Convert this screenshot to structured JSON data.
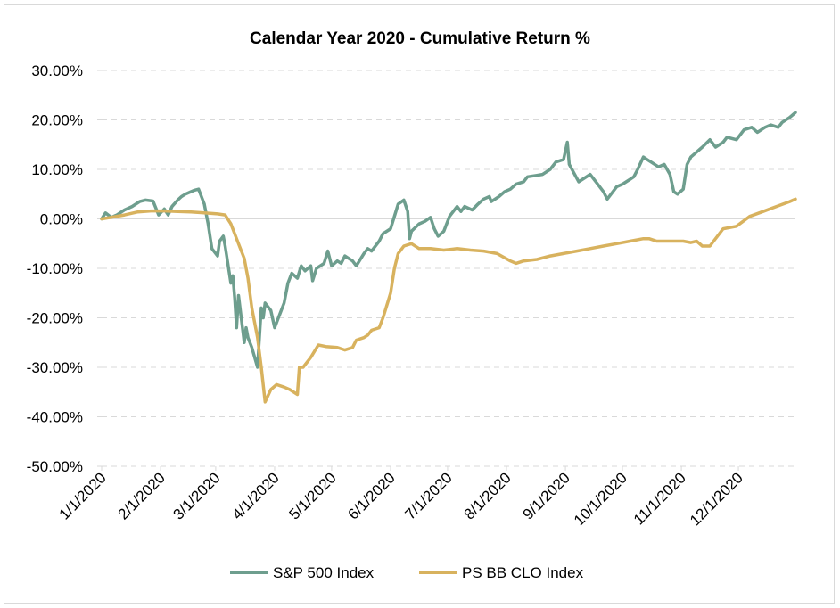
{
  "chart_data": {
    "type": "line",
    "title": "Calendar Year 2020 - Cumulative Return %",
    "xlabel": "",
    "ylabel": "",
    "ylim": [
      -50,
      30
    ],
    "y_ticks": [
      30,
      20,
      10,
      0,
      -10,
      -20,
      -30,
      -40,
      -50
    ],
    "y_tick_labels": [
      "30.00%",
      "20.00%",
      "10.00%",
      "0.00%",
      "-10.00%",
      "-20.00%",
      "-30.00%",
      "-40.00%",
      "-50.00%"
    ],
    "x_tick_labels": [
      "1/1/2020",
      "2/1/2020",
      "3/1/2020",
      "4/1/2020",
      "5/1/2020",
      "6/1/2020",
      "7/1/2020",
      "8/1/2020",
      "9/1/2020",
      "10/1/2020",
      "11/1/2020",
      "12/1/2020"
    ],
    "grid": true,
    "legend_position": "bottom",
    "series": [
      {
        "name": "S&P 500 Index",
        "color": "#6e9e8e",
        "points": [
          [
            "2020-01-01",
            0
          ],
          [
            "2020-01-03",
            1.2
          ],
          [
            "2020-01-06",
            0.3
          ],
          [
            "2020-01-09",
            0.8
          ],
          [
            "2020-01-13",
            1.8
          ],
          [
            "2020-01-17",
            2.5
          ],
          [
            "2020-01-21",
            3.5
          ],
          [
            "2020-01-24",
            3.8
          ],
          [
            "2020-01-28",
            3.6
          ],
          [
            "2020-01-31",
            0.8
          ],
          [
            "2020-02-03",
            2.0
          ],
          [
            "2020-02-05",
            0.8
          ],
          [
            "2020-02-07",
            2.5
          ],
          [
            "2020-02-10",
            3.8
          ],
          [
            "2020-02-12",
            4.5
          ],
          [
            "2020-02-14",
            5.0
          ],
          [
            "2020-02-17",
            5.5
          ],
          [
            "2020-02-19",
            5.8
          ],
          [
            "2020-02-21",
            6.0
          ],
          [
            "2020-02-24",
            3.0
          ],
          [
            "2020-02-26",
            -1.0
          ],
          [
            "2020-02-28",
            -6.0
          ],
          [
            "2020-03-02",
            -7.5
          ],
          [
            "2020-03-03",
            -4.5
          ],
          [
            "2020-03-05",
            -3.5
          ],
          [
            "2020-03-06",
            -5.5
          ],
          [
            "2020-03-09",
            -13.0
          ],
          [
            "2020-03-10",
            -11.5
          ],
          [
            "2020-03-11",
            -16.0
          ],
          [
            "2020-03-12",
            -22.0
          ],
          [
            "2020-03-13",
            -15.5
          ],
          [
            "2020-03-16",
            -25.0
          ],
          [
            "2020-03-17",
            -22.0
          ],
          [
            "2020-03-18",
            -24.0
          ],
          [
            "2020-03-20",
            -26.0
          ],
          [
            "2020-03-23",
            -30.0
          ],
          [
            "2020-03-24",
            -24.0
          ],
          [
            "2020-03-25",
            -18.0
          ],
          [
            "2020-03-26",
            -20.0
          ],
          [
            "2020-03-27",
            -17.0
          ],
          [
            "2020-03-30",
            -18.5
          ],
          [
            "2020-04-01",
            -22.0
          ],
          [
            "2020-04-03",
            -20.0
          ],
          [
            "2020-04-06",
            -17.0
          ],
          [
            "2020-04-08",
            -13.0
          ],
          [
            "2020-04-10",
            -11.0
          ],
          [
            "2020-04-13",
            -12.0
          ],
          [
            "2020-04-15",
            -9.5
          ],
          [
            "2020-04-17",
            -10.5
          ],
          [
            "2020-04-20",
            -9.5
          ],
          [
            "2020-04-21",
            -12.5
          ],
          [
            "2020-04-23",
            -10.0
          ],
          [
            "2020-04-27",
            -9.0
          ],
          [
            "2020-04-29",
            -6.5
          ],
          [
            "2020-05-01",
            -9.5
          ],
          [
            "2020-05-04",
            -8.5
          ],
          [
            "2020-05-06",
            -9.0
          ],
          [
            "2020-05-08",
            -7.5
          ],
          [
            "2020-05-12",
            -8.5
          ],
          [
            "2020-05-14",
            -9.5
          ],
          [
            "2020-05-18",
            -7.0
          ],
          [
            "2020-05-20",
            -6.0
          ],
          [
            "2020-05-22",
            -6.5
          ],
          [
            "2020-05-26",
            -4.5
          ],
          [
            "2020-05-28",
            -3.0
          ],
          [
            "2020-06-01",
            -2.0
          ],
          [
            "2020-06-03",
            0.5
          ],
          [
            "2020-06-05",
            3.0
          ],
          [
            "2020-06-08",
            3.8
          ],
          [
            "2020-06-10",
            1.5
          ],
          [
            "2020-06-11",
            -4.0
          ],
          [
            "2020-06-12",
            -2.5
          ],
          [
            "2020-06-16",
            -1.0
          ],
          [
            "2020-06-19",
            -0.5
          ],
          [
            "2020-06-22",
            0.3
          ],
          [
            "2020-06-24",
            -2.0
          ],
          [
            "2020-06-26",
            -3.5
          ],
          [
            "2020-06-29",
            -2.5
          ],
          [
            "2020-07-02",
            0.5
          ],
          [
            "2020-07-06",
            2.5
          ],
          [
            "2020-07-08",
            1.5
          ],
          [
            "2020-07-10",
            2.5
          ],
          [
            "2020-07-14",
            1.8
          ],
          [
            "2020-07-17",
            3.0
          ],
          [
            "2020-07-20",
            4.0
          ],
          [
            "2020-07-23",
            4.5
          ],
          [
            "2020-07-24",
            3.5
          ],
          [
            "2020-07-28",
            4.5
          ],
          [
            "2020-07-31",
            5.5
          ],
          [
            "2020-08-03",
            6.0
          ],
          [
            "2020-08-06",
            7.0
          ],
          [
            "2020-08-10",
            7.5
          ],
          [
            "2020-08-12",
            8.5
          ],
          [
            "2020-08-17",
            8.8
          ],
          [
            "2020-08-20",
            9.0
          ],
          [
            "2020-08-24",
            10.0
          ],
          [
            "2020-08-27",
            11.5
          ],
          [
            "2020-08-31",
            12.0
          ],
          [
            "2020-09-02",
            15.5
          ],
          [
            "2020-09-03",
            11.0
          ],
          [
            "2020-09-08",
            7.5
          ],
          [
            "2020-09-10",
            8.0
          ],
          [
            "2020-09-14",
            9.0
          ],
          [
            "2020-09-18",
            7.0
          ],
          [
            "2020-09-21",
            5.5
          ],
          [
            "2020-09-23",
            4.0
          ],
          [
            "2020-09-25",
            5.0
          ],
          [
            "2020-09-28",
            6.5
          ],
          [
            "2020-10-01",
            7.0
          ],
          [
            "2020-10-05",
            8.0
          ],
          [
            "2020-10-07",
            8.5
          ],
          [
            "2020-10-09",
            10.0
          ],
          [
            "2020-10-12",
            12.5
          ],
          [
            "2020-10-14",
            12.0
          ],
          [
            "2020-10-16",
            11.5
          ],
          [
            "2020-10-20",
            10.5
          ],
          [
            "2020-10-23",
            11.0
          ],
          [
            "2020-10-26",
            9.0
          ],
          [
            "2020-10-28",
            5.5
          ],
          [
            "2020-10-30",
            5.0
          ],
          [
            "2020-11-02",
            6.0
          ],
          [
            "2020-11-04",
            11.0
          ],
          [
            "2020-11-06",
            12.5
          ],
          [
            "2020-11-09",
            13.5
          ],
          [
            "2020-11-12",
            14.5
          ],
          [
            "2020-11-16",
            16.0
          ],
          [
            "2020-11-19",
            14.5
          ],
          [
            "2020-11-23",
            15.5
          ],
          [
            "2020-11-25",
            16.5
          ],
          [
            "2020-11-30",
            16.0
          ],
          [
            "2020-12-04",
            18.0
          ],
          [
            "2020-12-08",
            18.5
          ],
          [
            "2020-12-11",
            17.5
          ],
          [
            "2020-12-15",
            18.5
          ],
          [
            "2020-12-18",
            19.0
          ],
          [
            "2020-12-22",
            18.5
          ],
          [
            "2020-12-24",
            19.5
          ],
          [
            "2020-12-28",
            20.5
          ],
          [
            "2020-12-31",
            21.5
          ]
        ]
      },
      {
        "name": "PS BB CLO Index",
        "color": "#d8b25e",
        "points": [
          [
            "2020-01-01",
            0
          ],
          [
            "2020-01-06",
            0.3
          ],
          [
            "2020-01-13",
            0.8
          ],
          [
            "2020-01-20",
            1.4
          ],
          [
            "2020-01-27",
            1.6
          ],
          [
            "2020-02-03",
            1.6
          ],
          [
            "2020-02-10",
            1.5
          ],
          [
            "2020-02-17",
            1.4
          ],
          [
            "2020-02-24",
            1.2
          ],
          [
            "2020-03-02",
            1.0
          ],
          [
            "2020-03-06",
            0.8
          ],
          [
            "2020-03-09",
            -1.0
          ],
          [
            "2020-03-12",
            -4.0
          ],
          [
            "2020-03-16",
            -8.0
          ],
          [
            "2020-03-18",
            -12.0
          ],
          [
            "2020-03-20",
            -18.0
          ],
          [
            "2020-03-23",
            -24.0
          ],
          [
            "2020-03-25",
            -30.0
          ],
          [
            "2020-03-27",
            -37.0
          ],
          [
            "2020-03-30",
            -34.5
          ],
          [
            "2020-04-02",
            -33.5
          ],
          [
            "2020-04-06",
            -34.0
          ],
          [
            "2020-04-09",
            -34.5
          ],
          [
            "2020-04-13",
            -35.5
          ],
          [
            "2020-04-14",
            -30.0
          ],
          [
            "2020-04-16",
            -30.0
          ],
          [
            "2020-04-20",
            -28.0
          ],
          [
            "2020-04-24",
            -25.5
          ],
          [
            "2020-04-28",
            -25.8
          ],
          [
            "2020-05-04",
            -26.0
          ],
          [
            "2020-05-08",
            -26.5
          ],
          [
            "2020-05-12",
            -26.0
          ],
          [
            "2020-05-14",
            -24.5
          ],
          [
            "2020-05-18",
            -24.0
          ],
          [
            "2020-05-20",
            -23.5
          ],
          [
            "2020-05-22",
            -22.5
          ],
          [
            "2020-05-26",
            -22.0
          ],
          [
            "2020-05-28",
            -20.0
          ],
          [
            "2020-06-01",
            -15.0
          ],
          [
            "2020-06-03",
            -10.0
          ],
          [
            "2020-06-05",
            -7.0
          ],
          [
            "2020-06-08",
            -5.5
          ],
          [
            "2020-06-12",
            -5.0
          ],
          [
            "2020-06-16",
            -6.0
          ],
          [
            "2020-06-22",
            -6.0
          ],
          [
            "2020-06-29",
            -6.3
          ],
          [
            "2020-07-06",
            -6.0
          ],
          [
            "2020-07-13",
            -6.3
          ],
          [
            "2020-07-20",
            -6.5
          ],
          [
            "2020-07-27",
            -7.0
          ],
          [
            "2020-08-03",
            -8.5
          ],
          [
            "2020-08-06",
            -9.0
          ],
          [
            "2020-08-10",
            -8.5
          ],
          [
            "2020-08-17",
            -8.2
          ],
          [
            "2020-08-24",
            -7.5
          ],
          [
            "2020-08-31",
            -7.0
          ],
          [
            "2020-09-07",
            -6.5
          ],
          [
            "2020-09-14",
            -6.0
          ],
          [
            "2020-09-21",
            -5.5
          ],
          [
            "2020-09-28",
            -5.0
          ],
          [
            "2020-10-05",
            -4.5
          ],
          [
            "2020-10-12",
            -4.0
          ],
          [
            "2020-10-15",
            -4.0
          ],
          [
            "2020-10-19",
            -4.5
          ],
          [
            "2020-10-26",
            -4.5
          ],
          [
            "2020-11-02",
            -4.5
          ],
          [
            "2020-11-06",
            -4.8
          ],
          [
            "2020-11-09",
            -4.5
          ],
          [
            "2020-11-12",
            -5.5
          ],
          [
            "2020-11-16",
            -5.5
          ],
          [
            "2020-11-18",
            -4.5
          ],
          [
            "2020-11-23",
            -2.0
          ],
          [
            "2020-11-30",
            -1.5
          ],
          [
            "2020-12-07",
            0.5
          ],
          [
            "2020-12-14",
            1.5
          ],
          [
            "2020-12-21",
            2.5
          ],
          [
            "2020-12-28",
            3.5
          ],
          [
            "2020-12-31",
            4.0
          ]
        ]
      }
    ]
  }
}
